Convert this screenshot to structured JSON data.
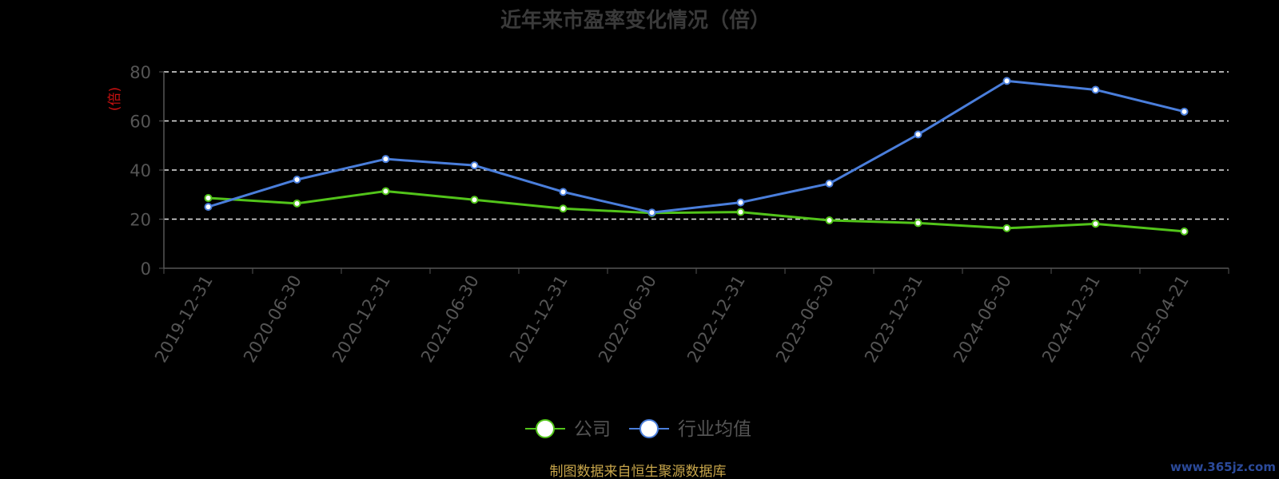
{
  "chart_data": {
    "type": "line",
    "title": "近年来市盈率变化情况（倍）",
    "ylabel": "(倍)",
    "xlabel": "",
    "ylim": [
      0,
      80
    ],
    "yticks": [
      0,
      20,
      40,
      60,
      80
    ],
    "grid": true,
    "legend_position": "bottom-center",
    "categories": [
      "2019-12-31",
      "2020-06-30",
      "2020-12-31",
      "2021-06-30",
      "2021-12-31",
      "2022-06-30",
      "2022-12-31",
      "2023-06-30",
      "2023-12-31",
      "2024-06-30",
      "2024-12-31",
      "2025-04-21"
    ],
    "series": [
      {
        "name": "公司",
        "color": "#52c41a",
        "values": [
          28.6,
          26.4,
          31.4,
          27.9,
          24.3,
          22.5,
          22.9,
          19.5,
          18.4,
          16.3,
          18.1,
          15.0
        ]
      },
      {
        "name": "行业均值",
        "color": "#4a7edb",
        "values": [
          25.0,
          36.1,
          44.5,
          41.9,
          31.1,
          22.7,
          26.8,
          34.5,
          54.5,
          76.3,
          72.7,
          63.8
        ]
      }
    ]
  },
  "source_note": "制图数据来自恒生聚源数据库",
  "watermark": "www.365jz.com"
}
